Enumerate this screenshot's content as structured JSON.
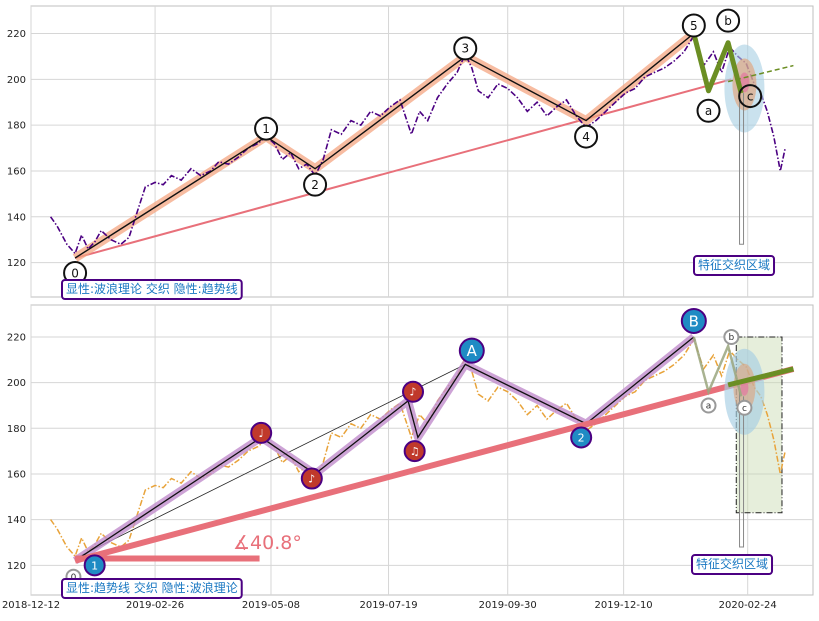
{
  "chart_data": {
    "type": "line",
    "x_ticks": [
      "2018-12-12",
      "2019-02-26",
      "2019-05-08",
      "2019-07-19",
      "2019-09-30",
      "2019-12-10",
      "2020-02-24"
    ],
    "x_range": [
      "2018-12-12",
      "2020-04-04"
    ],
    "grid": true,
    "colors": {
      "wave_fill": "#f4a582",
      "pivot_fill_bottom": "#c0392b",
      "pivot_blue": "#1f8bc4",
      "trendline": "#e8707a",
      "correction": "#6b8e23",
      "zone_blue": "#a6cee3",
      "label_text": "#1a78c2",
      "label_border": "#4b0082",
      "price_top": "#4b0082",
      "price_bottom": "#e8a33a"
    },
    "panels": [
      {
        "id": "top",
        "y_ticks": [
          120,
          140,
          160,
          180,
          200,
          220
        ],
        "ylim": [
          105,
          232
        ],
        "annotation": "显性:波浪理论 交织 隐性:趋势线",
        "zone_label": "特征交织区域",
        "price_series": [
          [
            "2018-12-24",
            140
          ],
          [
            "2018-12-28",
            136
          ],
          [
            "2019-01-03",
            128
          ],
          [
            "2019-01-08",
            124
          ],
          [
            "2019-01-12",
            132
          ],
          [
            "2019-01-16",
            126
          ],
          [
            "2019-01-20",
            129
          ],
          [
            "2019-01-24",
            134
          ],
          [
            "2019-01-30",
            130
          ],
          [
            "2019-02-05",
            128
          ],
          [
            "2019-02-10",
            131
          ],
          [
            "2019-02-15",
            142
          ],
          [
            "2019-02-20",
            153
          ],
          [
            "2019-02-26",
            155
          ],
          [
            "2019-03-03",
            154
          ],
          [
            "2019-03-08",
            158
          ],
          [
            "2019-03-14",
            156
          ],
          [
            "2019-03-20",
            161
          ],
          [
            "2019-03-26",
            158
          ],
          [
            "2019-04-01",
            160
          ],
          [
            "2019-04-06",
            164
          ],
          [
            "2019-04-12",
            163
          ],
          [
            "2019-04-18",
            166
          ],
          [
            "2019-04-24",
            170
          ],
          [
            "2019-04-30",
            172
          ],
          [
            "2019-05-05",
            175
          ],
          [
            "2019-05-10",
            172
          ],
          [
            "2019-05-15",
            165
          ],
          [
            "2019-05-20",
            168
          ],
          [
            "2019-05-25",
            161
          ],
          [
            "2019-05-30",
            163
          ],
          [
            "2019-06-04",
            158
          ],
          [
            "2019-06-09",
            165
          ],
          [
            "2019-06-14",
            178
          ],
          [
            "2019-06-20",
            176
          ],
          [
            "2019-06-26",
            182
          ],
          [
            "2019-07-02",
            180
          ],
          [
            "2019-07-08",
            186
          ],
          [
            "2019-07-14",
            184
          ],
          [
            "2019-07-20",
            188
          ],
          [
            "2019-07-26",
            191
          ],
          [
            "2019-08-02",
            176
          ],
          [
            "2019-08-07",
            186
          ],
          [
            "2019-08-12",
            182
          ],
          [
            "2019-08-18",
            192
          ],
          [
            "2019-08-24",
            198
          ],
          [
            "2019-08-30",
            203
          ],
          [
            "2019-09-04",
            211
          ],
          [
            "2019-09-08",
            205
          ],
          [
            "2019-09-12",
            195
          ],
          [
            "2019-09-18",
            192
          ],
          [
            "2019-09-24",
            198
          ],
          [
            "2019-09-30",
            196
          ],
          [
            "2019-10-06",
            192
          ],
          [
            "2019-10-12",
            186
          ],
          [
            "2019-10-18",
            190
          ],
          [
            "2019-10-24",
            184
          ],
          [
            "2019-10-30",
            188
          ],
          [
            "2019-11-05",
            191
          ],
          [
            "2019-11-11",
            184
          ],
          [
            "2019-11-17",
            179
          ],
          [
            "2019-11-23",
            182
          ],
          [
            "2019-11-29",
            186
          ],
          [
            "2019-12-05",
            190
          ],
          [
            "2019-12-11",
            194
          ],
          [
            "2019-12-17",
            196
          ],
          [
            "2019-12-23",
            201
          ],
          [
            "2019-12-29",
            203
          ],
          [
            "2020-01-04",
            205
          ],
          [
            "2020-01-10",
            208
          ],
          [
            "2020-01-16",
            212
          ],
          [
            "2020-01-22",
            219
          ],
          [
            "2020-01-28",
            206
          ],
          [
            "2020-02-03",
            212
          ],
          [
            "2020-02-08",
            203
          ],
          [
            "2020-02-13",
            214
          ],
          [
            "2020-02-18",
            210
          ],
          [
            "2020-02-23",
            207
          ],
          [
            "2020-02-28",
            198
          ],
          [
            "2020-03-03",
            194
          ],
          [
            "2020-03-07",
            186
          ],
          [
            "2020-03-11",
            175
          ],
          [
            "2020-03-15",
            160
          ],
          [
            "2020-03-18",
            170
          ]
        ],
        "wave_points": [
          {
            "label": "0",
            "date": "2019-01-08",
            "value": 122
          },
          {
            "label": "1",
            "date": "2019-05-05",
            "value": 175
          },
          {
            "label": "2",
            "date": "2019-06-04",
            "value": 161
          },
          {
            "label": "3",
            "date": "2019-09-04",
            "value": 210
          },
          {
            "label": "4",
            "date": "2019-11-17",
            "value": 182
          },
          {
            "label": "5",
            "date": "2020-01-22",
            "value": 220
          }
        ],
        "correction_points": [
          {
            "label": "a",
            "date": "2020-01-31",
            "value": 195
          },
          {
            "label": "b",
            "date": "2020-02-12",
            "value": 216
          },
          {
            "label": "c",
            "date": "2020-02-20",
            "value": 194
          }
        ],
        "trendline": [
          [
            "2019-01-08",
            122
          ],
          [
            "2020-02-14",
            200
          ]
        ],
        "dashed_trend": [
          [
            "2020-02-12",
            199
          ],
          [
            "2020-03-23",
            206
          ]
        ]
      },
      {
        "id": "bottom",
        "y_ticks": [
          120,
          140,
          160,
          180,
          200,
          220
        ],
        "ylim": [
          107,
          234
        ],
        "annotation": "显性:趋势线 交织 隐性:波浪理论",
        "zone_label": "特征交织区域",
        "angle_label": "∡40.8°",
        "price_series": [
          [
            "2018-12-24",
            140
          ],
          [
            "2018-12-28",
            136
          ],
          [
            "2019-01-03",
            128
          ],
          [
            "2019-01-08",
            124
          ],
          [
            "2019-01-12",
            132
          ],
          [
            "2019-01-16",
            126
          ],
          [
            "2019-01-20",
            129
          ],
          [
            "2019-01-24",
            134
          ],
          [
            "2019-01-30",
            130
          ],
          [
            "2019-02-05",
            128
          ],
          [
            "2019-02-10",
            131
          ],
          [
            "2019-02-15",
            142
          ],
          [
            "2019-02-20",
            153
          ],
          [
            "2019-02-26",
            155
          ],
          [
            "2019-03-03",
            154
          ],
          [
            "2019-03-08",
            158
          ],
          [
            "2019-03-14",
            156
          ],
          [
            "2019-03-20",
            161
          ],
          [
            "2019-03-26",
            158
          ],
          [
            "2019-04-01",
            160
          ],
          [
            "2019-04-06",
            164
          ],
          [
            "2019-04-12",
            163
          ],
          [
            "2019-04-18",
            166
          ],
          [
            "2019-04-24",
            170
          ],
          [
            "2019-04-30",
            172
          ],
          [
            "2019-05-05",
            175
          ],
          [
            "2019-05-10",
            172
          ],
          [
            "2019-05-15",
            165
          ],
          [
            "2019-05-20",
            168
          ],
          [
            "2019-05-25",
            161
          ],
          [
            "2019-05-30",
            163
          ],
          [
            "2019-06-04",
            158
          ],
          [
            "2019-06-09",
            165
          ],
          [
            "2019-06-14",
            178
          ],
          [
            "2019-06-20",
            176
          ],
          [
            "2019-06-26",
            182
          ],
          [
            "2019-07-02",
            180
          ],
          [
            "2019-07-08",
            186
          ],
          [
            "2019-07-14",
            184
          ],
          [
            "2019-07-20",
            188
          ],
          [
            "2019-07-26",
            191
          ],
          [
            "2019-08-02",
            176
          ],
          [
            "2019-08-07",
            186
          ],
          [
            "2019-08-12",
            182
          ],
          [
            "2019-08-18",
            192
          ],
          [
            "2019-08-24",
            198
          ],
          [
            "2019-08-30",
            203
          ],
          [
            "2019-09-04",
            211
          ],
          [
            "2019-09-08",
            205
          ],
          [
            "2019-09-12",
            195
          ],
          [
            "2019-09-18",
            192
          ],
          [
            "2019-09-24",
            198
          ],
          [
            "2019-09-30",
            196
          ],
          [
            "2019-10-06",
            192
          ],
          [
            "2019-10-12",
            186
          ],
          [
            "2019-10-18",
            190
          ],
          [
            "2019-10-24",
            184
          ],
          [
            "2019-10-30",
            188
          ],
          [
            "2019-11-05",
            191
          ],
          [
            "2019-11-11",
            184
          ],
          [
            "2019-11-17",
            179
          ],
          [
            "2019-11-23",
            182
          ],
          [
            "2019-11-29",
            186
          ],
          [
            "2019-12-05",
            190
          ],
          [
            "2019-12-11",
            194
          ],
          [
            "2019-12-17",
            196
          ],
          [
            "2019-12-23",
            201
          ],
          [
            "2019-12-29",
            203
          ],
          [
            "2020-01-04",
            205
          ],
          [
            "2020-01-10",
            208
          ],
          [
            "2020-01-16",
            212
          ],
          [
            "2020-01-22",
            219
          ],
          [
            "2020-01-28",
            206
          ],
          [
            "2020-02-03",
            212
          ],
          [
            "2020-02-08",
            203
          ],
          [
            "2020-02-13",
            214
          ],
          [
            "2020-02-18",
            210
          ],
          [
            "2020-02-23",
            207
          ],
          [
            "2020-02-28",
            198
          ],
          [
            "2020-03-03",
            194
          ],
          [
            "2020-03-07",
            186
          ],
          [
            "2020-03-11",
            175
          ],
          [
            "2020-03-15",
            160
          ],
          [
            "2020-03-18",
            170
          ]
        ],
        "pivot_points": [
          {
            "label": "1",
            "style": "blue",
            "date": "2019-01-20",
            "value": 120
          },
          {
            "label": "♩",
            "style": "red",
            "date": "2019-05-02",
            "value": 178
          },
          {
            "label": "♪",
            "style": "red",
            "date": "2019-06-02",
            "value": 158
          },
          {
            "label": "♪",
            "style": "red",
            "date": "2019-08-03",
            "value": 196
          },
          {
            "label": "♫",
            "style": "red",
            "date": "2019-08-04",
            "value": 170
          },
          {
            "label": "A",
            "style": "blue",
            "date": "2019-09-08",
            "value": 214
          },
          {
            "label": "2",
            "style": "blue",
            "date": "2019-11-14",
            "value": 176
          },
          {
            "label": "B",
            "style": "blue",
            "date": "2020-01-22",
            "value": 227
          }
        ],
        "wave_path": [
          [
            "2019-01-08",
            122
          ],
          [
            "2019-05-02",
            176
          ],
          [
            "2019-06-04",
            160
          ],
          [
            "2019-07-31",
            192
          ],
          [
            "2019-08-06",
            176
          ],
          [
            "2019-09-04",
            208
          ],
          [
            "2019-11-17",
            182
          ],
          [
            "2020-01-22",
            220
          ]
        ],
        "small_labels": [
          {
            "label": "0",
            "date": "2019-01-07",
            "value": 115
          },
          {
            "label": "a",
            "date": "2020-01-31",
            "value": 190
          },
          {
            "label": "b",
            "date": "2020-02-14",
            "value": 220
          },
          {
            "label": "c",
            "date": "2020-02-22",
            "value": 189
          }
        ],
        "trendline": [
          [
            "2019-01-08",
            122
          ],
          [
            "2020-03-23",
            206
          ]
        ],
        "horizontal_ref": [
          [
            "2019-01-08",
            123
          ],
          [
            "2019-05-01",
            123
          ]
        ],
        "correction_path": [
          [
            "2020-01-22",
            220
          ],
          [
            "2020-01-31",
            196
          ],
          [
            "2020-02-12",
            216
          ],
          [
            "2020-02-20",
            194
          ]
        ],
        "green_box": {
          "x0": "2020-02-17",
          "x1": "2020-03-16",
          "y0": 143,
          "y1": 220
        }
      }
    ]
  }
}
